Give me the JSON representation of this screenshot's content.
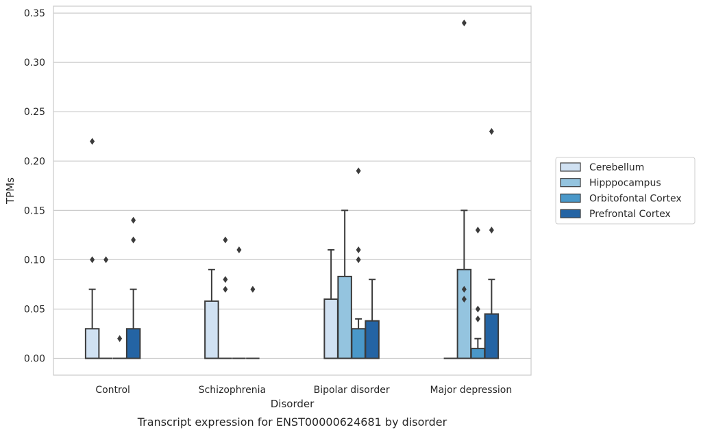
{
  "chart_data": {
    "type": "box",
    "xlabel": "Disorder",
    "ylabel": "TPMs",
    "caption": "Transcript expression for ENST00000624681 by disorder",
    "categories": [
      "Control",
      "Schizophrenia",
      "Bipolar disorder",
      "Major depression"
    ],
    "ylim": [
      -0.017,
      0.357
    ],
    "yticks": [
      0.0,
      0.05,
      0.1,
      0.15,
      0.2,
      0.25,
      0.3,
      0.35
    ],
    "ytick_labels": [
      "0.00",
      "0.05",
      "0.10",
      "0.15",
      "0.20",
      "0.25",
      "0.30",
      "0.35"
    ],
    "grid": "horizontal",
    "legend_position": "right",
    "series": [
      {
        "name": "Cerebellum",
        "color": "#d0e1f2",
        "boxes": [
          {
            "q1": 0,
            "median": 0,
            "q3": 0.03,
            "whislo": 0,
            "whishi": 0.07,
            "fliers": [
              0.1,
              0.22
            ]
          },
          {
            "q1": 0,
            "median": 0,
            "q3": 0.058,
            "whislo": 0,
            "whishi": 0.09,
            "fliers": []
          },
          {
            "q1": 0,
            "median": 0,
            "q3": 0.06,
            "whislo": 0,
            "whishi": 0.11,
            "fliers": []
          },
          {
            "q1": 0,
            "median": 0,
            "q3": 0,
            "whislo": 0,
            "whishi": 0,
            "fliers": []
          }
        ]
      },
      {
        "name": "Hipppocampus",
        "color": "#94c4df",
        "boxes": [
          {
            "q1": 0,
            "median": 0,
            "q3": 0,
            "whislo": 0,
            "whishi": 0,
            "fliers": [
              0.1
            ]
          },
          {
            "q1": 0,
            "median": 0,
            "q3": 0,
            "whislo": 0,
            "whishi": 0,
            "fliers": [
              0.07,
              0.08,
              0.12
            ]
          },
          {
            "q1": 0,
            "median": 0,
            "q3": 0.083,
            "whislo": 0,
            "whishi": 0.15,
            "fliers": []
          },
          {
            "q1": 0,
            "median": 0,
            "q3": 0.09,
            "whislo": 0,
            "whishi": 0.15,
            "fliers": [
              0.06,
              0.07,
              0.34
            ]
          }
        ]
      },
      {
        "name": "Orbitofontal Cortex",
        "color": "#4a98c9",
        "boxes": [
          {
            "q1": 0,
            "median": 0,
            "q3": 0,
            "whislo": 0,
            "whishi": 0,
            "fliers": [
              0.02
            ]
          },
          {
            "q1": 0,
            "median": 0,
            "q3": 0,
            "whislo": 0,
            "whishi": 0,
            "fliers": [
              0.11
            ]
          },
          {
            "q1": 0,
            "median": 0,
            "q3": 0.03,
            "whislo": 0,
            "whishi": 0.04,
            "fliers": [
              0.1,
              0.11,
              0.19
            ]
          },
          {
            "q1": 0,
            "median": 0,
            "q3": 0.01,
            "whislo": 0,
            "whishi": 0.02,
            "fliers": [
              0.04,
              0.05,
              0.13
            ]
          }
        ]
      },
      {
        "name": "Prefrontal Cortex",
        "color": "#2464a4",
        "boxes": [
          {
            "q1": 0,
            "median": 0,
            "q3": 0.03,
            "whislo": 0,
            "whishi": 0.07,
            "fliers": [
              0.12,
              0.14
            ]
          },
          {
            "q1": 0,
            "median": 0,
            "q3": 0,
            "whislo": 0,
            "whishi": 0,
            "fliers": [
              0.07
            ]
          },
          {
            "q1": 0,
            "median": 0,
            "q3": 0.038,
            "whislo": 0,
            "whishi": 0.08,
            "fliers": []
          },
          {
            "q1": 0,
            "median": 0,
            "q3": 0.045,
            "whislo": 0,
            "whishi": 0.08,
            "fliers": [
              0.13,
              0.23
            ]
          }
        ]
      }
    ]
  }
}
